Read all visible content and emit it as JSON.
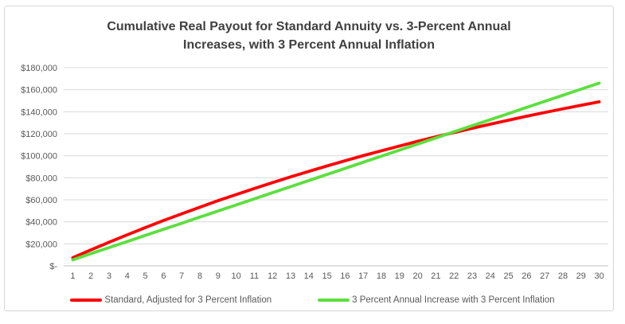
{
  "chart_data": {
    "type": "line",
    "title": "Cumulative Real Payout for Standard Annuity vs. 3-Percent Annual Increases, with 3 Percent Annual Inflation",
    "xlabel": "",
    "ylabel": "",
    "x": [
      1,
      2,
      3,
      4,
      5,
      6,
      7,
      8,
      9,
      10,
      11,
      12,
      13,
      14,
      15,
      16,
      17,
      18,
      19,
      20,
      21,
      22,
      23,
      24,
      25,
      26,
      27,
      28,
      29,
      30
    ],
    "ylim": [
      0,
      180000
    ],
    "y_ticks": {
      "values": [
        0,
        20000,
        40000,
        60000,
        80000,
        100000,
        120000,
        140000,
        160000,
        180000
      ],
      "labels": [
        "$-",
        "$20,000",
        "$40,000",
        "$60,000",
        "$80,000",
        "$100,000",
        "$120,000",
        "$140,000",
        "$160,000",
        "$180,000"
      ]
    },
    "grid": "horizontal-major",
    "legend_position": "bottom",
    "series": [
      {
        "name": "Standard, Adjusted for 3 Percent Inflation",
        "color": "#ff0000",
        "values": [
          7400,
          14500,
          21500,
          28200,
          34800,
          41200,
          47300,
          53300,
          59200,
          64800,
          70300,
          75600,
          80800,
          85800,
          90700,
          95500,
          100100,
          104500,
          108900,
          113100,
          117200,
          121100,
          125000,
          128700,
          132300,
          135900,
          139300,
          142600,
          145800,
          149000
        ]
      },
      {
        "name": "3 Percent Annual Increase with 3 Percent Inflation",
        "color": "#5cdf3e",
        "values": [
          5500,
          11100,
          16600,
          22100,
          27700,
          33200,
          38700,
          44300,
          49800,
          55300,
          60900,
          66400,
          71900,
          77500,
          83000,
          88500,
          94100,
          99600,
          105100,
          110700,
          116200,
          121700,
          127300,
          132800,
          138300,
          143900,
          149400,
          154900,
          160500,
          166000
        ]
      }
    ],
    "colors": {
      "gridline": "#d9d9d9",
      "axis_line": "#bfbfbf",
      "tick_text": "#595959",
      "title_text": "#404040"
    }
  }
}
